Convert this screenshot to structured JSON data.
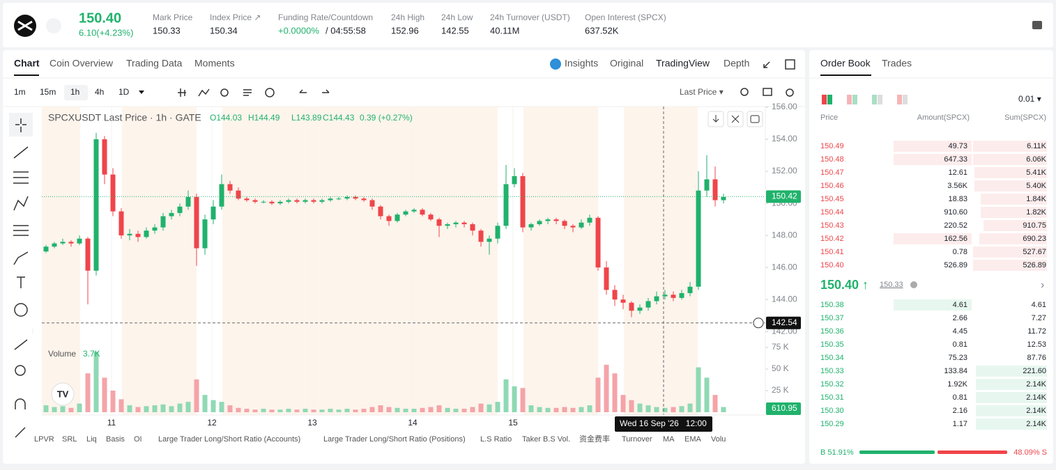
{
  "header": {
    "symbol_price": "150.40",
    "change": "6.10(+4.23%)",
    "stats": [
      {
        "label": "Mark Price",
        "value": "150.33"
      },
      {
        "label": "Index Price ↗",
        "value": "150.34"
      },
      {
        "label": "Funding Rate/Countdown",
        "value": "+0.0000%",
        "extra": "/ 04:55:58"
      },
      {
        "label": "24h High",
        "value": "152.96"
      },
      {
        "label": "24h Low",
        "value": "142.55"
      },
      {
        "label": "24h Turnover (USDT)",
        "value": "40.11M"
      },
      {
        "label": "Open Interest (SPCX)",
        "value": "637.52K"
      }
    ]
  },
  "chart_tabs": [
    "Chart",
    "Coin Overview",
    "Trading Data",
    "Moments"
  ],
  "view_tabs": [
    "Insights",
    "Original",
    "TradingView",
    "Depth"
  ],
  "intervals": [
    "1m",
    "15m",
    "1h",
    "4h",
    "1D"
  ],
  "price_source": "Last Price ▾",
  "legend": {
    "title": "SPCXUSDT Last Price · 1h · GATE",
    "o": "O144.03",
    "h": "H144.49",
    "l": "L143.89",
    "c": "C144.43",
    "chg": "0.39 (+0.27%)"
  },
  "volume_legend": {
    "label": "Volume",
    "value": "3.7K"
  },
  "chart": {
    "type": "candlestick",
    "ylim": [
      141.4,
      156.0
    ],
    "yticks": [
      {
        "value": 156,
        "label": "156.00"
      },
      {
        "value": 154,
        "label": "154.00"
      },
      {
        "value": 152,
        "label": "152.00"
      },
      {
        "value": 150,
        "label": "150.00"
      },
      {
        "value": 148,
        "label": "148.00"
      },
      {
        "value": 146,
        "label": "146.00"
      },
      {
        "value": 144,
        "label": "144.00"
      },
      {
        "value": 142,
        "label": "142.00"
      }
    ],
    "last_price": 150.42,
    "crosshair_price": 142.54,
    "x_labels": [
      "11",
      "12",
      "13",
      "14",
      "15"
    ],
    "crosshair_time": "Wed 16 Sep '26   12:00",
    "candles": [
      [
        147.0,
        147.4,
        146.9,
        147.3
      ],
      [
        147.3,
        147.6,
        147.2,
        147.5
      ],
      [
        147.5,
        147.8,
        147.4,
        147.6
      ],
      [
        147.6,
        147.7,
        147.3,
        147.5
      ],
      [
        147.5,
        148.0,
        147.4,
        147.8
      ],
      [
        147.8,
        147.9,
        143.7,
        145.8
      ],
      [
        145.8,
        154.4,
        145.5,
        154.0
      ],
      [
        154.0,
        154.2,
        151.2,
        151.8
      ],
      [
        151.8,
        152.2,
        149.2,
        149.5
      ],
      [
        149.5,
        149.7,
        147.8,
        148.0
      ],
      [
        148.0,
        148.4,
        147.7,
        148.1
      ],
      [
        148.1,
        148.3,
        147.6,
        147.9
      ],
      [
        147.9,
        148.5,
        147.8,
        148.3
      ],
      [
        148.3,
        148.7,
        148.1,
        148.5
      ],
      [
        148.5,
        149.4,
        148.3,
        149.2
      ],
      [
        149.2,
        149.6,
        149.0,
        149.4
      ],
      [
        149.4,
        150.0,
        149.2,
        149.8
      ],
      [
        149.8,
        150.8,
        149.6,
        150.4
      ],
      [
        150.4,
        150.6,
        146.1,
        147.2
      ],
      [
        147.2,
        149.3,
        146.8,
        149.0
      ],
      [
        149.0,
        150.2,
        148.7,
        149.8
      ],
      [
        149.8,
        151.8,
        149.6,
        151.2
      ],
      [
        151.2,
        151.4,
        150.6,
        150.8
      ],
      [
        150.8,
        151.0,
        150.2,
        150.3
      ],
      [
        150.3,
        150.4,
        150.1,
        150.2
      ],
      [
        150.2,
        150.3,
        150.0,
        150.1
      ],
      [
        150.1,
        150.2,
        150.0,
        150.1
      ],
      [
        150.1,
        150.2,
        149.9,
        150.0
      ],
      [
        150.0,
        150.2,
        149.9,
        150.1
      ],
      [
        150.1,
        150.3,
        150.0,
        150.2
      ],
      [
        150.2,
        150.3,
        150.0,
        150.1
      ],
      [
        150.1,
        150.3,
        150.0,
        150.2
      ],
      [
        150.2,
        150.3,
        150.0,
        150.1
      ],
      [
        150.1,
        150.3,
        150.0,
        150.2
      ],
      [
        150.2,
        150.4,
        150.1,
        150.3
      ],
      [
        150.3,
        150.4,
        150.2,
        150.3
      ],
      [
        150.3,
        150.5,
        150.2,
        150.4
      ],
      [
        150.4,
        150.5,
        150.2,
        150.3
      ],
      [
        150.3,
        150.4,
        150.1,
        150.2
      ],
      [
        150.2,
        150.3,
        149.6,
        149.8
      ],
      [
        149.8,
        149.9,
        149.0,
        149.2
      ],
      [
        149.2,
        149.3,
        148.6,
        148.9
      ],
      [
        148.9,
        149.4,
        148.8,
        149.3
      ],
      [
        149.3,
        149.6,
        149.2,
        149.5
      ],
      [
        149.5,
        149.7,
        149.4,
        149.6
      ],
      [
        149.6,
        149.7,
        149.2,
        149.3
      ],
      [
        149.3,
        149.4,
        148.9,
        149.0
      ],
      [
        149.0,
        149.1,
        147.9,
        148.6
      ],
      [
        148.6,
        148.8,
        148.4,
        148.7
      ],
      [
        148.7,
        148.9,
        148.5,
        148.8
      ],
      [
        148.8,
        148.9,
        148.5,
        148.7
      ],
      [
        148.7,
        148.8,
        148.0,
        148.3
      ],
      [
        148.3,
        148.4,
        147.3,
        147.6
      ],
      [
        147.6,
        148.0,
        146.8,
        147.8
      ],
      [
        147.8,
        148.8,
        147.5,
        148.6
      ],
      [
        148.6,
        152.4,
        148.4,
        151.2
      ],
      [
        151.2,
        152.2,
        151.0,
        151.7
      ],
      [
        151.7,
        151.9,
        148.2,
        148.5
      ],
      [
        148.5,
        148.8,
        148.3,
        148.7
      ],
      [
        148.7,
        149.0,
        148.6,
        148.9
      ],
      [
        148.9,
        149.1,
        148.7,
        149.0
      ],
      [
        149.0,
        149.1,
        148.7,
        148.9
      ],
      [
        148.9,
        149.0,
        148.4,
        148.6
      ],
      [
        148.6,
        148.7,
        148.2,
        148.5
      ],
      [
        148.5,
        149.0,
        148.4,
        148.8
      ],
      [
        148.8,
        149.3,
        148.6,
        149.1
      ],
      [
        149.1,
        149.2,
        145.8,
        146.0
      ],
      [
        146.0,
        146.4,
        144.3,
        144.6
      ],
      [
        144.6,
        144.9,
        143.6,
        144.0
      ],
      [
        144.0,
        144.3,
        143.4,
        143.8
      ],
      [
        143.8,
        143.9,
        142.9,
        143.3
      ],
      [
        143.3,
        143.7,
        143.1,
        143.5
      ],
      [
        143.5,
        144.1,
        143.3,
        143.9
      ],
      [
        143.9,
        144.5,
        143.7,
        144.2
      ],
      [
        144.2,
        144.6,
        144.0,
        144.3
      ],
      [
        144.3,
        144.5,
        143.9,
        144.1
      ],
      [
        144.1,
        144.6,
        144.0,
        144.4
      ],
      [
        144.4,
        145.1,
        144.2,
        144.8
      ],
      [
        144.8,
        152.0,
        144.6,
        150.8
      ],
      [
        150.8,
        153.0,
        150.4,
        151.5
      ],
      [
        151.5,
        152.3,
        149.8,
        150.2
      ],
      [
        150.2,
        150.6,
        150.0,
        150.4
      ]
    ],
    "volume_ylim": [
      0,
      77
    ],
    "volume_ticks": [
      {
        "value": 75,
        "label": "75 K"
      },
      {
        "value": 50,
        "label": "50 K"
      },
      {
        "value": 25,
        "label": "25 K"
      }
    ],
    "volume_last": "610.95",
    "volumes": [
      8,
      6,
      7,
      5,
      10,
      45,
      70,
      40,
      25,
      15,
      8,
      6,
      7,
      8,
      9,
      7,
      10,
      12,
      38,
      20,
      14,
      12,
      8,
      5,
      4,
      3,
      4,
      3,
      3,
      4,
      3,
      4,
      3,
      3,
      4,
      3,
      4,
      3,
      4,
      6,
      8,
      6,
      5,
      4,
      4,
      5,
      6,
      8,
      5,
      4,
      4,
      6,
      10,
      9,
      12,
      38,
      30,
      28,
      8,
      6,
      5,
      5,
      6,
      5,
      6,
      8,
      40,
      55,
      45,
      20,
      14,
      10,
      8,
      6,
      5,
      6,
      7,
      10,
      52,
      40,
      20,
      6
    ]
  },
  "indicators": [
    "LPVR",
    "SRL",
    "Liq",
    "Basis",
    "OI",
    "Large Trader Long/Short Ratio (Accounts)",
    "Large Trader Long/Short Ratio (Positions)",
    "L.S Ratio",
    "Taker B.S Vol.",
    "资金费率",
    "Turnover",
    "MA",
    "EMA",
    "Volu"
  ],
  "order_book": {
    "tabs": [
      "Order Book",
      "Trades"
    ],
    "precision": "0.01 ▾",
    "headers": [
      "Price",
      "Amount(SPCX)",
      "Sum(SPCX)"
    ],
    "asks": [
      [
        "150.49",
        "49.73",
        "6.11K"
      ],
      [
        "150.48",
        "647.33",
        "6.06K"
      ],
      [
        "150.47",
        "12.61",
        "5.41K"
      ],
      [
        "150.46",
        "3.56K",
        "5.40K"
      ],
      [
        "150.45",
        "18.83",
        "1.84K"
      ],
      [
        "150.44",
        "910.60",
        "1.82K"
      ],
      [
        "150.43",
        "220.52",
        "910.75"
      ],
      [
        "150.42",
        "162.56",
        "690.23"
      ],
      [
        "150.41",
        "0.78",
        "527.67"
      ],
      [
        "150.40",
        "526.89",
        "526.89"
      ]
    ],
    "mid_price": "150.40 ↑",
    "mark": "150.33",
    "bids": [
      [
        "150.38",
        "4.61",
        "4.61"
      ],
      [
        "150.37",
        "2.66",
        "7.27"
      ],
      [
        "150.36",
        "4.45",
        "11.72"
      ],
      [
        "150.35",
        "0.81",
        "12.53"
      ],
      [
        "150.34",
        "75.23",
        "87.76"
      ],
      [
        "150.33",
        "133.84",
        "221.60"
      ],
      [
        "150.32",
        "1.92K",
        "2.14K"
      ],
      [
        "150.31",
        "0.81",
        "2.14K"
      ],
      [
        "150.30",
        "2.16",
        "2.14K"
      ],
      [
        "150.29",
        "1.17",
        "2.14K"
      ]
    ],
    "buy_ratio": "B 51.91%",
    "sell_ratio": "48.09% S"
  }
}
